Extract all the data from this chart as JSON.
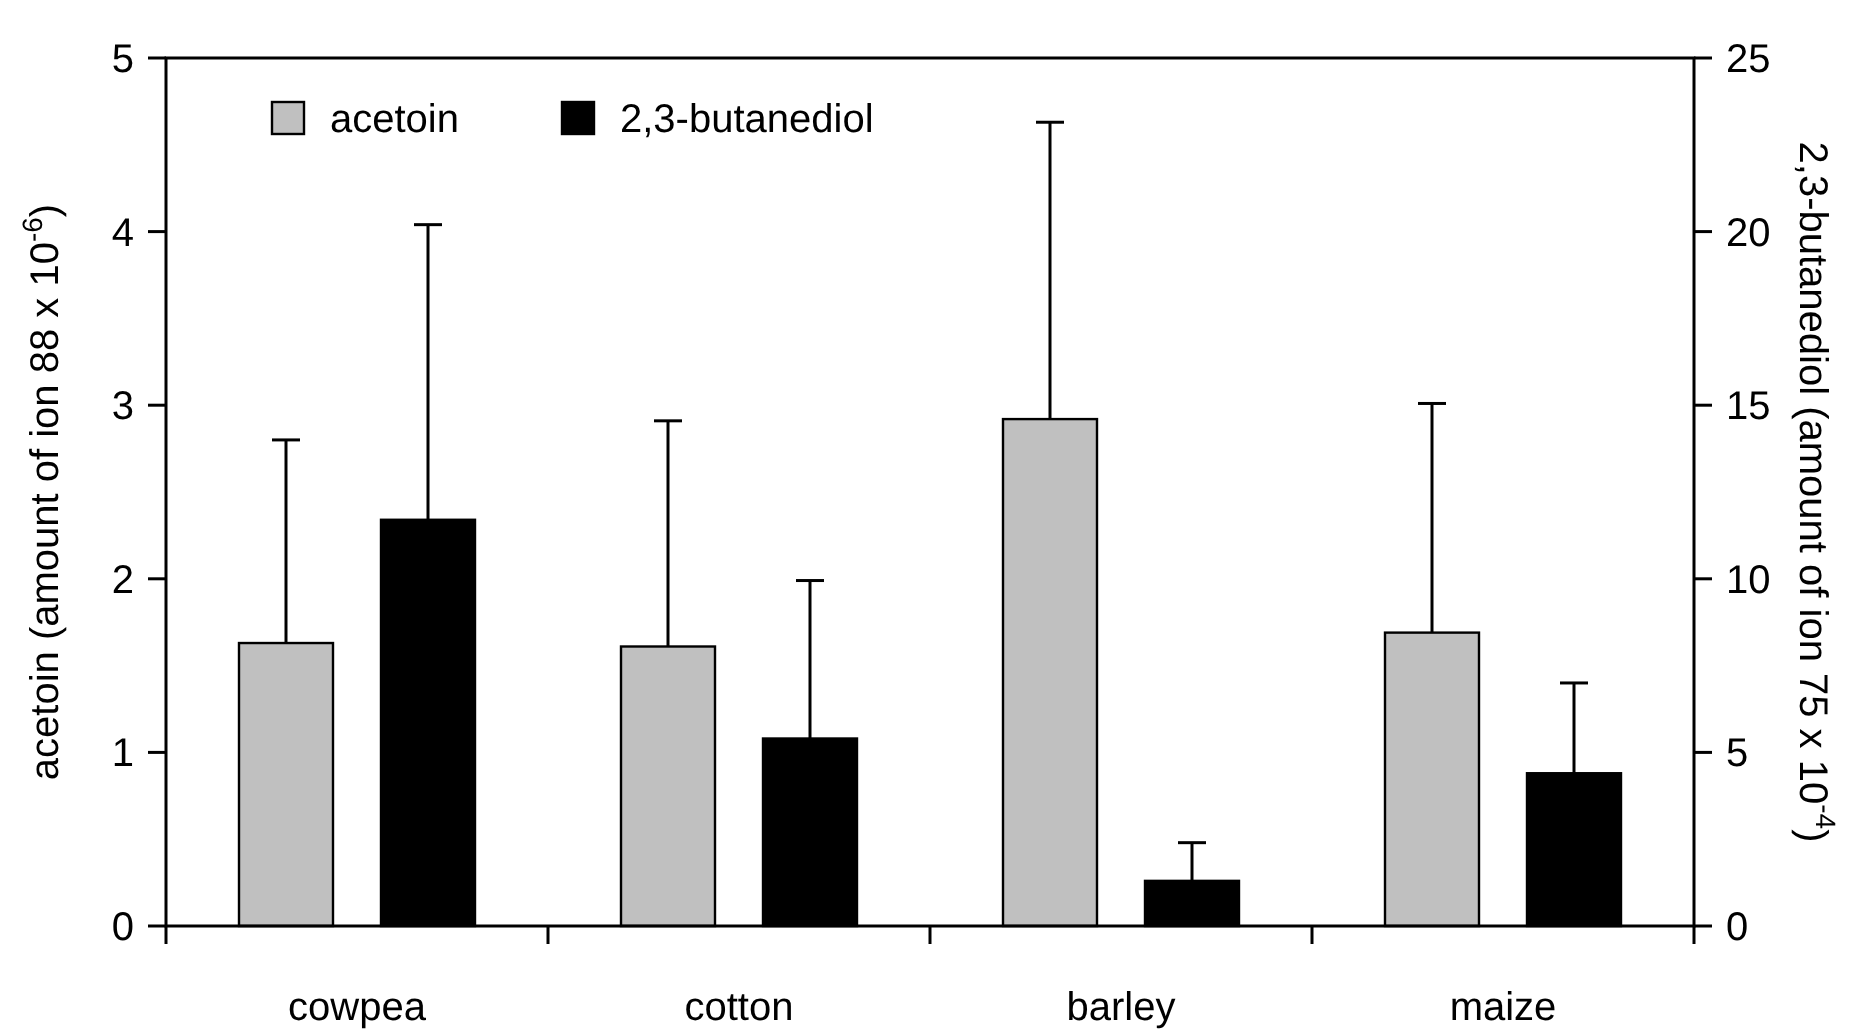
{
  "chart_data": {
    "type": "bar",
    "xlabel": null,
    "ylabel": "acetoin (amount of ion 88 x 10$^{-6}$)",
    "y2label": "2,3-butanediol (amount of ion 75 x 10$^{-4}$)",
    "categories": [
      "cowpea",
      "cotton",
      "barley",
      "maize"
    ],
    "series": [
      {
        "name": "acetoin",
        "color": "#c0c0c0",
        "values": [
          1.63,
          1.61,
          2.92,
          1.69
        ],
        "errors": [
          [
            1.63,
            2.8
          ],
          [
            1.61,
            2.91
          ],
          [
            2.92,
            4.63
          ],
          [
            1.69,
            3.01
          ]
        ]
      },
      {
        "name": "2,3-butanediol",
        "color": "#000000",
        "axis": "y2",
        "values": [
          11.7,
          5.4,
          1.3,
          4.4
        ],
        "errors": [
          [
            11.7,
            20.2
          ],
          [
            5.4,
            9.95
          ],
          [
            1.3,
            2.4
          ],
          [
            4.4,
            7.0
          ]
        ]
      }
    ],
    "ylim": [
      0,
      5
    ],
    "yticks": [
      0,
      1,
      2,
      3,
      4,
      5
    ],
    "y2lim": [
      0,
      25
    ],
    "y2ticks": [
      0,
      5,
      10,
      15,
      20,
      25
    ],
    "legend": "top left",
    "grid": false
  }
}
